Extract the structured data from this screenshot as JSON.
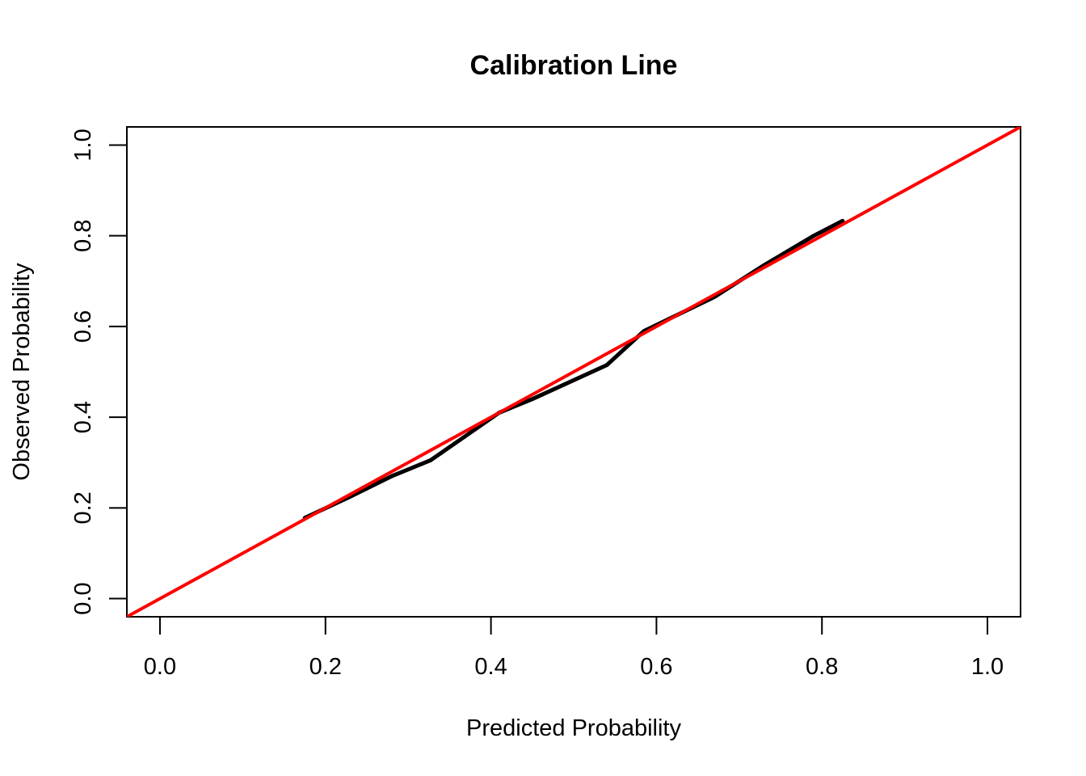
{
  "chart_data": {
    "type": "line",
    "title": "Calibration Line",
    "xlabel": "Predicted Probability",
    "ylabel": "Observed Probability",
    "xlim": [
      -0.04,
      1.04
    ],
    "ylim": [
      -0.04,
      1.04
    ],
    "x_ticks": [
      0.0,
      0.2,
      0.4,
      0.6,
      0.8,
      1.0
    ],
    "y_ticks": [
      0.0,
      0.2,
      0.4,
      0.6,
      0.8,
      1.0
    ],
    "x_tick_labels": [
      "0.0",
      "0.2",
      "0.4",
      "0.6",
      "0.8",
      "1.0"
    ],
    "y_tick_labels": [
      "0.0",
      "0.2",
      "0.4",
      "0.6",
      "0.8",
      "1.0"
    ],
    "grid": false,
    "legend": "none",
    "series": [
      {
        "role": "calibration",
        "color": "#000000",
        "x": [
          0.175,
          0.23,
          0.28,
          0.327,
          0.41,
          0.45,
          0.54,
          0.585,
          0.67,
          0.73,
          0.79,
          0.825
        ],
        "y": [
          0.178,
          0.225,
          0.27,
          0.305,
          0.41,
          0.44,
          0.515,
          0.59,
          0.665,
          0.735,
          0.8,
          0.833
        ]
      },
      {
        "role": "reference",
        "color": "#ff0000",
        "x": [
          -0.04,
          1.04
        ],
        "y": [
          -0.04,
          1.04
        ]
      }
    ]
  }
}
